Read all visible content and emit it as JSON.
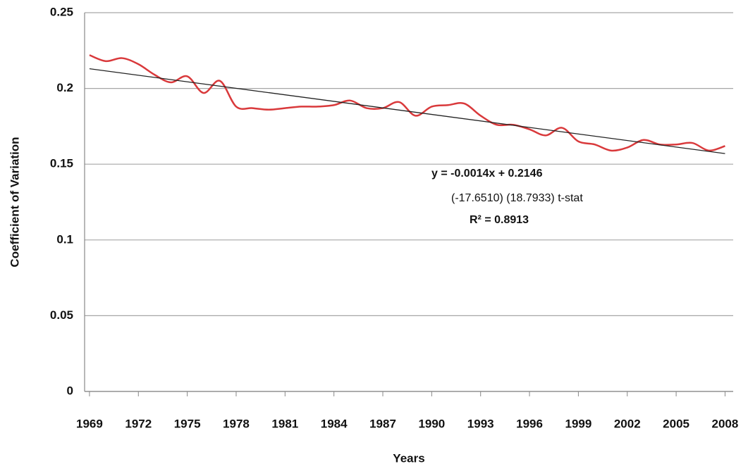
{
  "chart_data": {
    "type": "line",
    "x_label": "Years",
    "y_label": "Coefficient of  Variation",
    "x": [
      1969,
      1970,
      1971,
      1972,
      1973,
      1974,
      1975,
      1976,
      1977,
      1978,
      1979,
      1980,
      1981,
      1982,
      1983,
      1984,
      1985,
      1986,
      1987,
      1988,
      1989,
      1990,
      1991,
      1992,
      1993,
      1994,
      1995,
      1996,
      1997,
      1998,
      1999,
      2000,
      2001,
      2002,
      2003,
      2004,
      2005,
      2006,
      2007,
      2008
    ],
    "series": [
      {
        "color": "#d9393b",
        "values": [
          0.222,
          0.218,
          0.22,
          0.216,
          0.209,
          0.204,
          0.208,
          0.197,
          0.205,
          0.188,
          0.187,
          0.186,
          0.187,
          0.188,
          0.188,
          0.189,
          0.192,
          0.187,
          0.187,
          0.191,
          0.182,
          0.188,
          0.189,
          0.19,
          0.182,
          0.176,
          0.176,
          0.173,
          0.169,
          0.174,
          0.165,
          0.163,
          0.159,
          0.161,
          0.166,
          0.163,
          0.163,
          0.164,
          0.159,
          0.162
        ]
      }
    ],
    "trendline": {
      "color": "#222222",
      "x": [
        1969,
        2008
      ],
      "values": [
        0.213,
        0.157
      ]
    },
    "annotations": [
      "y = -0.0014x + 0.2146",
      "(-17.6510)     (18.7933)  t-stat",
      "R² = 0.8913"
    ],
    "xlim": [
      1968.7,
      2008.5
    ],
    "xticks": [
      1969,
      1972,
      1975,
      1978,
      1981,
      1984,
      1987,
      1990,
      1993,
      1996,
      1999,
      2002,
      2005,
      2008
    ],
    "ylim": [
      0,
      0.25
    ],
    "yticks": [
      0,
      0.05,
      0.1,
      0.15,
      0.2,
      0.25
    ],
    "grid": true
  }
}
